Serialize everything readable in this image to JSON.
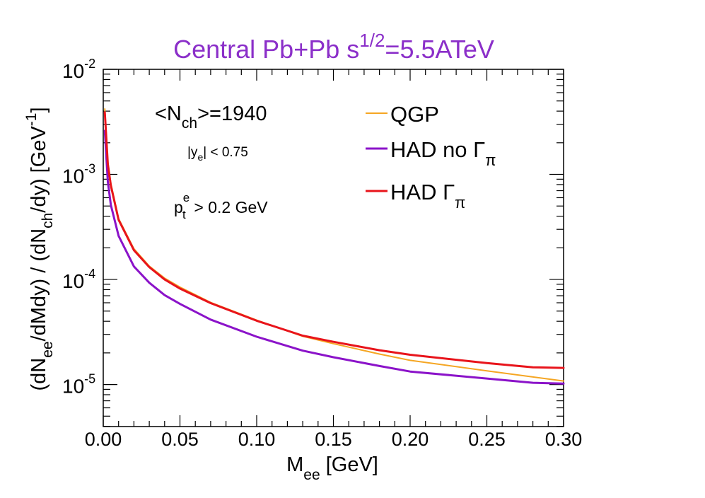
{
  "chart_data": {
    "type": "line",
    "title": {
      "main": "Central Pb+Pb  s",
      "sup": "1/2",
      "tail": "=5.5ATeV",
      "color": "#8b2fc9"
    },
    "xlabel": {
      "main": "M",
      "sub": "ee",
      "tail": " [GeV]"
    },
    "ylabel": {
      "p1": "(dN",
      "s1": "ee",
      "p2": "/dMdy) / (dN",
      "s2": "ch",
      "p3": "/dy)  [GeV",
      "sup": "-1",
      "p4": "]"
    },
    "xlim": [
      0.0,
      0.3
    ],
    "ylim_log10": [
      -5.4,
      -2.0
    ],
    "x_ticks": [
      {
        "v": 0.0,
        "label": "0.00"
      },
      {
        "v": 0.05,
        "label": "0.05"
      },
      {
        "v": 0.1,
        "label": "0.10"
      },
      {
        "v": 0.15,
        "label": "0.15"
      },
      {
        "v": 0.2,
        "label": "0.20"
      },
      {
        "v": 0.25,
        "label": "0.25"
      },
      {
        "v": 0.3,
        "label": "0.30"
      }
    ],
    "y_ticks": [
      {
        "exp": -2,
        "base": "10",
        "sup": "-2"
      },
      {
        "exp": -3,
        "base": "10",
        "sup": "-3"
      },
      {
        "exp": -4,
        "base": "10",
        "sup": "-4"
      },
      {
        "exp": -5,
        "base": "10",
        "sup": "-5"
      }
    ],
    "annotations": {
      "nch": {
        "p1": "<N",
        "sub": "ch",
        "p2": ">=1940"
      },
      "ye": {
        "p1": "|y",
        "sub": "e",
        "p2": "| < 0.75"
      },
      "pt": {
        "p1": "p",
        "sup": "e",
        "sub": "t",
        "p2": " > 0.2 GeV"
      }
    },
    "series": [
      {
        "name": "QGP",
        "legend": {
          "main": "QGP",
          "sub": ""
        },
        "color": "#f5a623",
        "width": 2,
        "x": [
          0.001,
          0.003,
          0.005,
          0.01,
          0.02,
          0.03,
          0.04,
          0.05,
          0.07,
          0.1,
          0.13,
          0.15,
          0.18,
          0.2,
          0.25,
          0.3
        ],
        "y": [
          0.0042,
          0.0013,
          0.00082,
          0.00038,
          0.000196,
          0.000134,
          0.000103,
          8.45e-05,
          6.05e-05,
          4.1e-05,
          2.88e-05,
          2.45e-05,
          1.95e-05,
          1.7e-05,
          1.35e-05,
          1.08e-05
        ]
      },
      {
        "name": "HAD no Γπ",
        "legend": {
          "main": "HAD no Γ",
          "sub": "π"
        },
        "color": "#8b13c9",
        "width": 3,
        "x": [
          0.001,
          0.003,
          0.005,
          0.01,
          0.02,
          0.03,
          0.04,
          0.05,
          0.07,
          0.1,
          0.13,
          0.15,
          0.18,
          0.2,
          0.25,
          0.28,
          0.3
        ],
        "y": [
          0.0026,
          0.00085,
          0.00051,
          0.00026,
          0.000133,
          9.3e-05,
          7.1e-05,
          5.85e-05,
          4.15e-05,
          2.85e-05,
          2.1e-05,
          1.82e-05,
          1.5e-05,
          1.33e-05,
          1.14e-05,
          1.04e-05,
          1.02e-05
        ]
      },
      {
        "name": "HAD Γπ",
        "legend": {
          "main": "HAD  Γ",
          "sub": "π"
        },
        "color": "#e8141b",
        "width": 3,
        "x": [
          0.001,
          0.003,
          0.005,
          0.01,
          0.02,
          0.03,
          0.04,
          0.05,
          0.07,
          0.1,
          0.13,
          0.15,
          0.18,
          0.2,
          0.25,
          0.28,
          0.3
        ],
        "y": [
          0.0039,
          0.00125,
          0.00078,
          0.00037,
          0.00019,
          0.000131,
          0.0001,
          8.2e-05,
          5.95e-05,
          4.05e-05,
          2.92e-05,
          2.55e-05,
          2.12e-05,
          1.92e-05,
          1.6e-05,
          1.46e-05,
          1.44e-05
        ]
      }
    ]
  }
}
